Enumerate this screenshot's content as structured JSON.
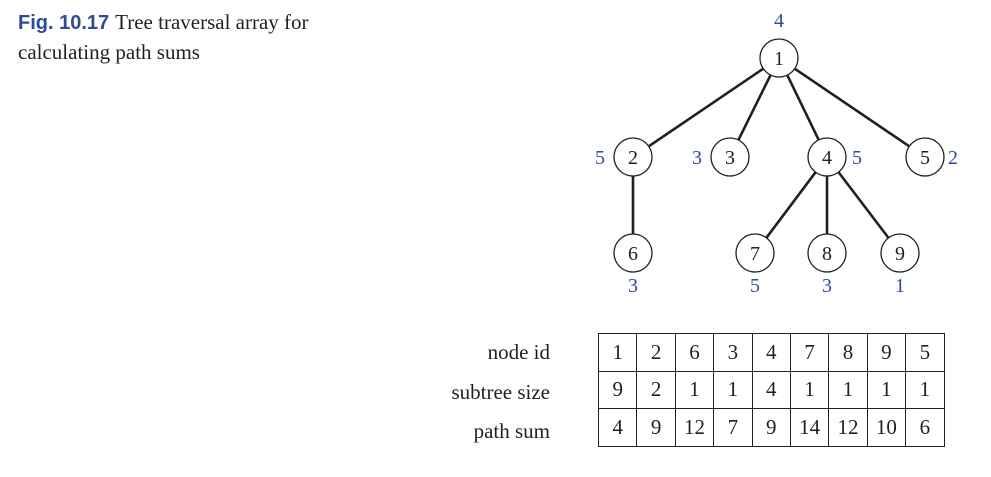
{
  "caption": {
    "label": "Fig. 10.17",
    "text": "Tree traversal array for calculating path sums"
  },
  "colors": {
    "value": "#2e4a9b",
    "ink": "#231f20"
  },
  "tree": {
    "nodes": [
      {
        "id": "1",
        "value": "4"
      },
      {
        "id": "2",
        "value": "5"
      },
      {
        "id": "3",
        "value": "3"
      },
      {
        "id": "4",
        "value": "5"
      },
      {
        "id": "5",
        "value": "2"
      },
      {
        "id": "6",
        "value": "3"
      },
      {
        "id": "7",
        "value": "5"
      },
      {
        "id": "8",
        "value": "3"
      },
      {
        "id": "9",
        "value": "1"
      }
    ],
    "edges": [
      [
        "1",
        "2"
      ],
      [
        "1",
        "3"
      ],
      [
        "1",
        "4"
      ],
      [
        "1",
        "5"
      ],
      [
        "2",
        "6"
      ],
      [
        "4",
        "7"
      ],
      [
        "4",
        "8"
      ],
      [
        "4",
        "9"
      ]
    ]
  },
  "table": {
    "rows": [
      {
        "label": "node id",
        "cells": [
          "1",
          "2",
          "6",
          "3",
          "4",
          "7",
          "8",
          "9",
          "5"
        ]
      },
      {
        "label": "subtree size",
        "cells": [
          "9",
          "2",
          "1",
          "1",
          "4",
          "1",
          "1",
          "1",
          "1"
        ]
      },
      {
        "label": "path sum",
        "cells": [
          "4",
          "9",
          "12",
          "7",
          "9",
          "14",
          "12",
          "10",
          "6"
        ]
      }
    ]
  }
}
